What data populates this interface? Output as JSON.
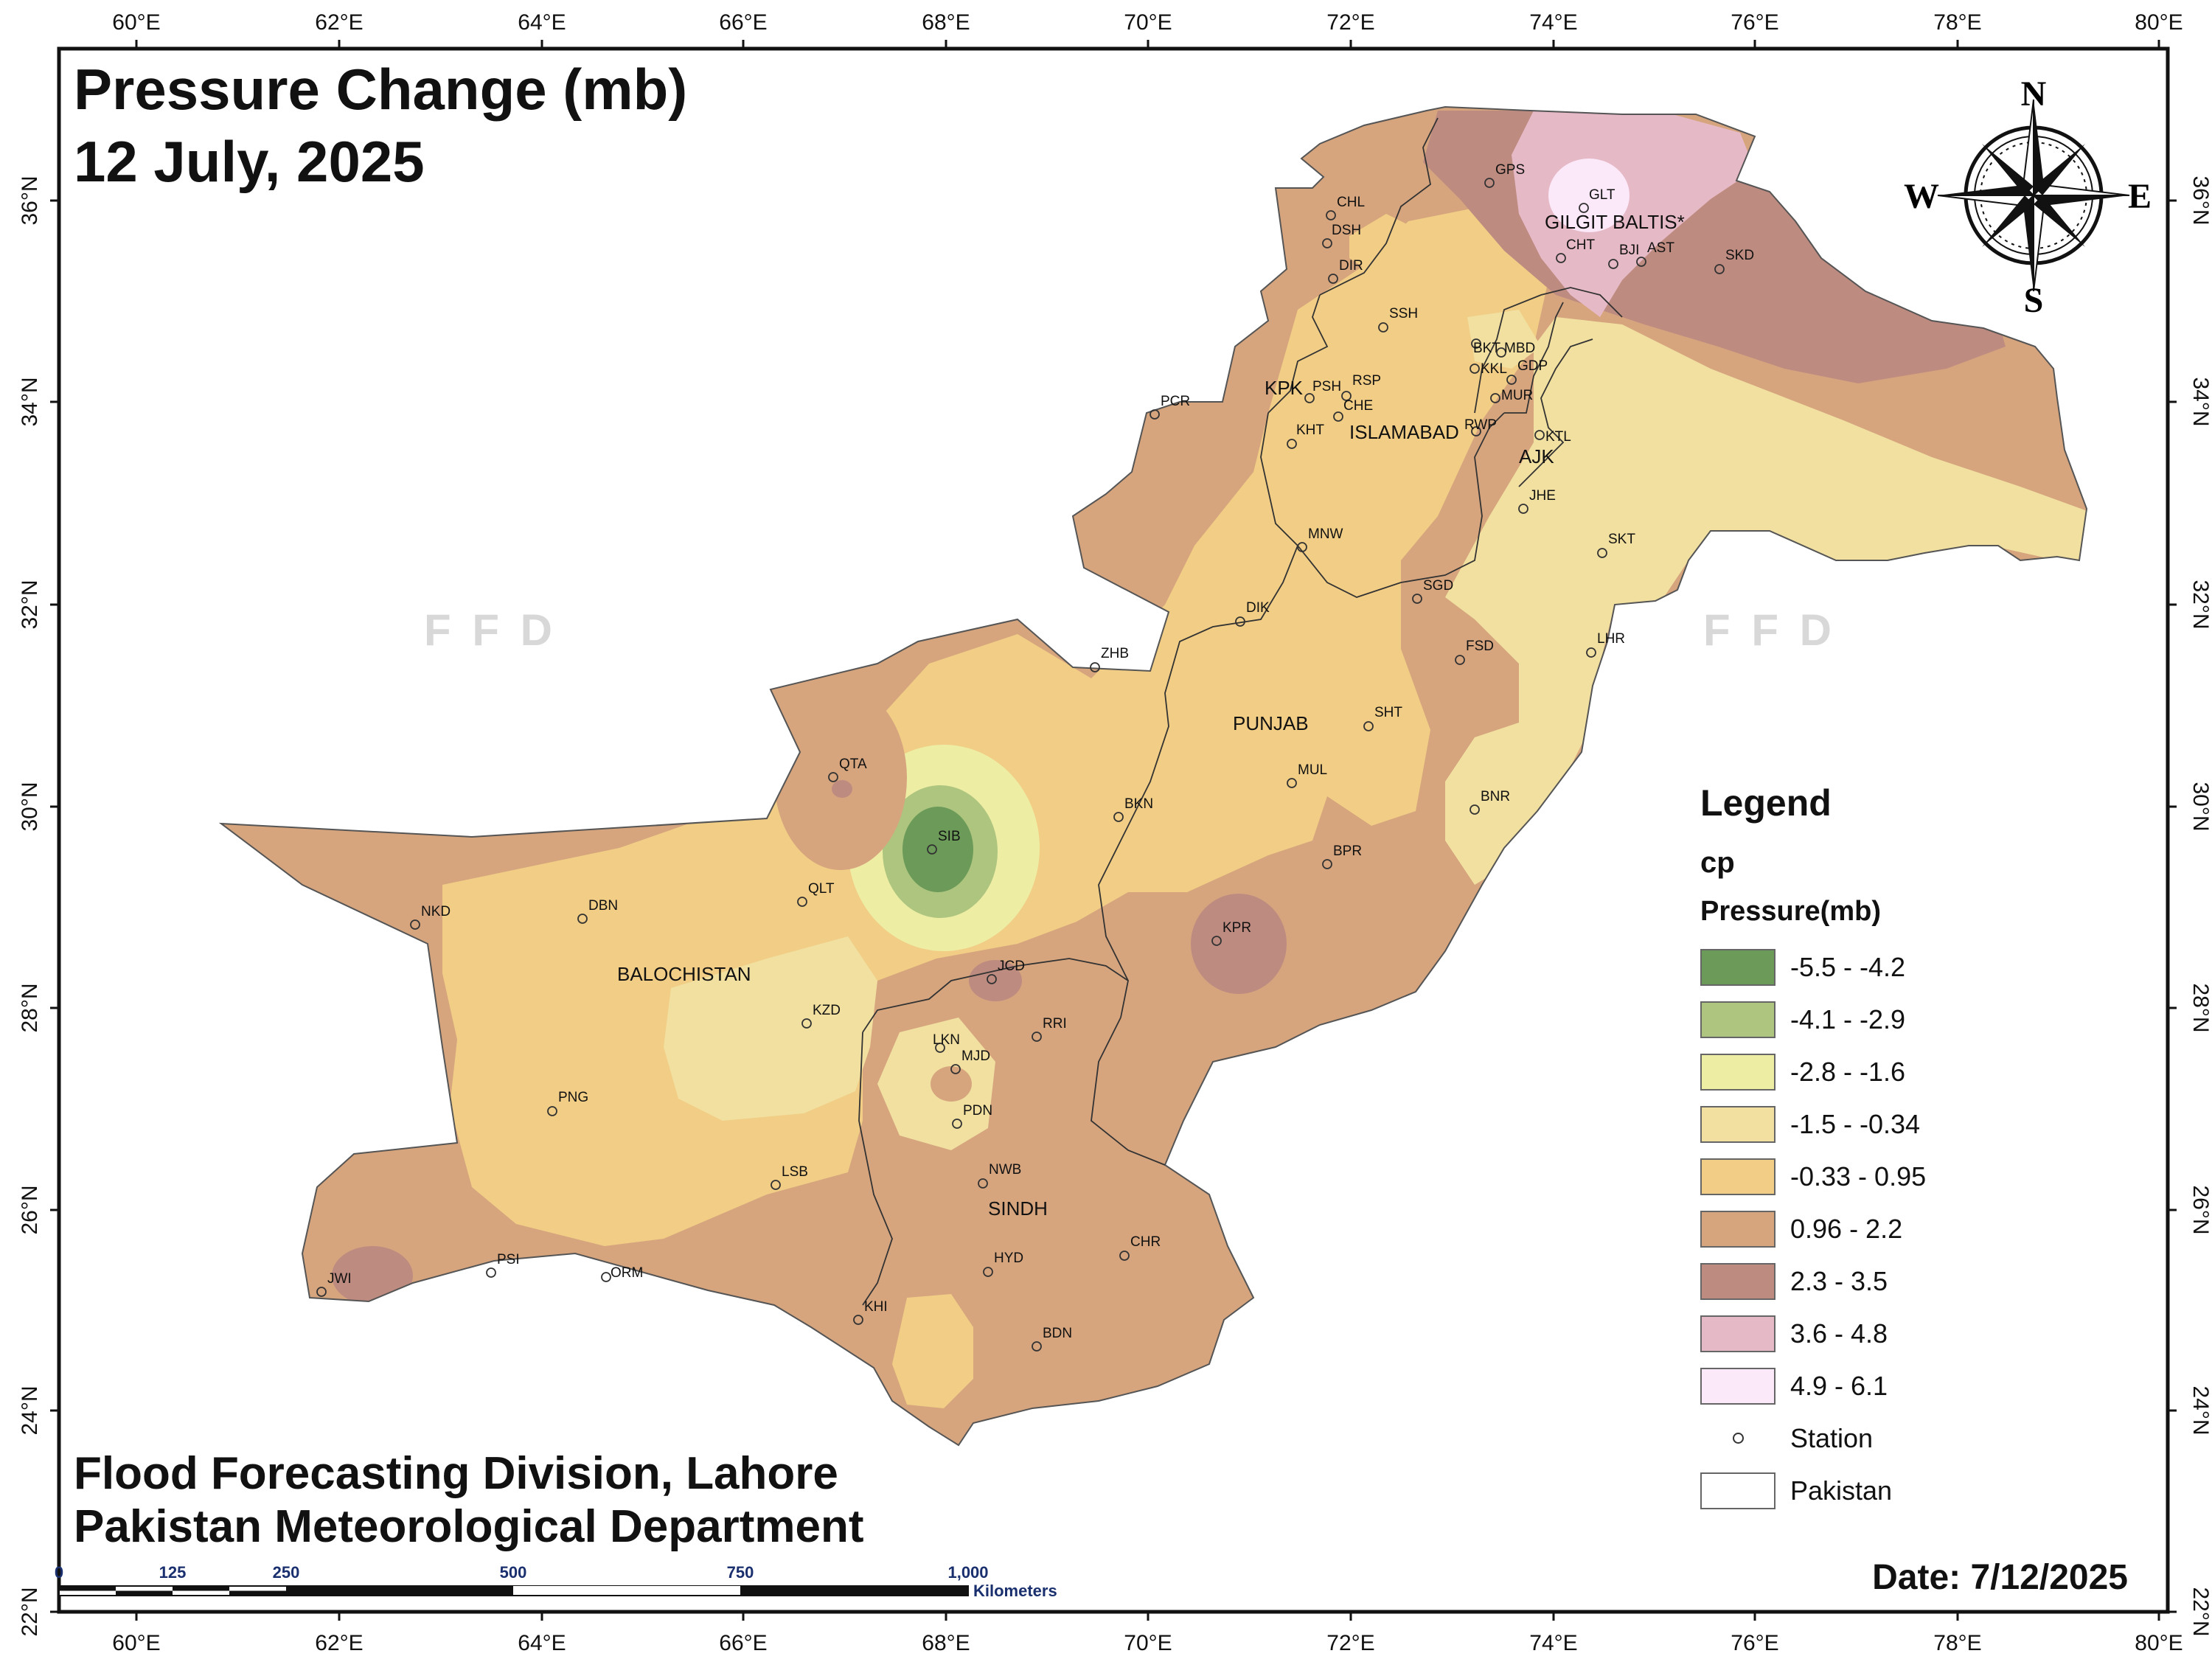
{
  "map": {
    "title_line1": "Pressure Change (mb)",
    "title_line2": "12 July, 2025",
    "org_line1": "Flood Forecasting Division, Lahore",
    "org_line2": "Pakistan Meteorological Department",
    "date": "Date: 7/12/2025",
    "watermark": "F F D",
    "lon_ticks": [
      "60°E",
      "62°E",
      "64°E",
      "66°E",
      "68°E",
      "70°E",
      "72°E",
      "74°E",
      "76°E",
      "78°E",
      "80°E"
    ],
    "lat_ticks": [
      "36°N",
      "34°N",
      "32°N",
      "30°N",
      "28°N",
      "26°N",
      "24°N",
      "22°N"
    ],
    "scale_labels": [
      "0",
      "125",
      "250",
      "500",
      "750",
      "1,000"
    ],
    "scale_unit": "Kilometers",
    "compass": {
      "n": "N",
      "s": "S",
      "e": "E",
      "w": "W"
    }
  },
  "legend": {
    "title": "Legend",
    "field": "cp",
    "subtitle": "Pressure(mb)",
    "classes": [
      {
        "label": "-5.5 - -4.2",
        "color": "#6b9a59"
      },
      {
        "label": "-4.1 - -2.9",
        "color": "#aec57f"
      },
      {
        "label": "-2.8 - -1.6",
        "color": "#eeeda4"
      },
      {
        "label": "-1.5 - -0.34",
        "color": "#f1e0a0"
      },
      {
        "label": "-0.33 - 0.95",
        "color": "#f1cd85"
      },
      {
        "label": "0.96 - 2.2",
        "color": "#d6a57e"
      },
      {
        "label": "2.3 - 3.5",
        "color": "#be8b80"
      },
      {
        "label": "3.6 - 4.8",
        "color": "#e6b9c6"
      },
      {
        "label": "4.9 - 6.1",
        "color": "#fbe8f8"
      }
    ],
    "station_label": "Station",
    "boundary_label": "Pakistan"
  },
  "regions": [
    "GILGIT BALTIS*",
    "KPK",
    "ISLAMABAD",
    "AJK",
    "PUNJAB",
    "BALOCHISTAN",
    "SINDH"
  ],
  "stations": [
    "GPS",
    "GLT",
    "CHL",
    "DSH",
    "DIR",
    "CHT",
    "BJI",
    "AST",
    "SKD",
    "SSH",
    "BKT",
    "MBD",
    "KKL",
    "GDP",
    "MUR",
    "PSH",
    "RSP",
    "CHE",
    "RWP",
    "KHT",
    "PCR",
    "KTL",
    "JHE",
    "SKT",
    "MNW",
    "SGD",
    "DIK",
    "ZHB",
    "LHR",
    "FSD",
    "SHT",
    "QTA",
    "MUL",
    "BNR",
    "BKN",
    "SIB",
    "BPR",
    "QLT",
    "NKD",
    "DBN",
    "KPR",
    "JCD",
    "KZD",
    "RRI",
    "LKN",
    "MJD",
    "PDN",
    "PNG",
    "LSB",
    "NWB",
    "CHR",
    "PSI",
    "ORM",
    "HYD",
    "JWI",
    "KHI",
    "BDN"
  ]
}
